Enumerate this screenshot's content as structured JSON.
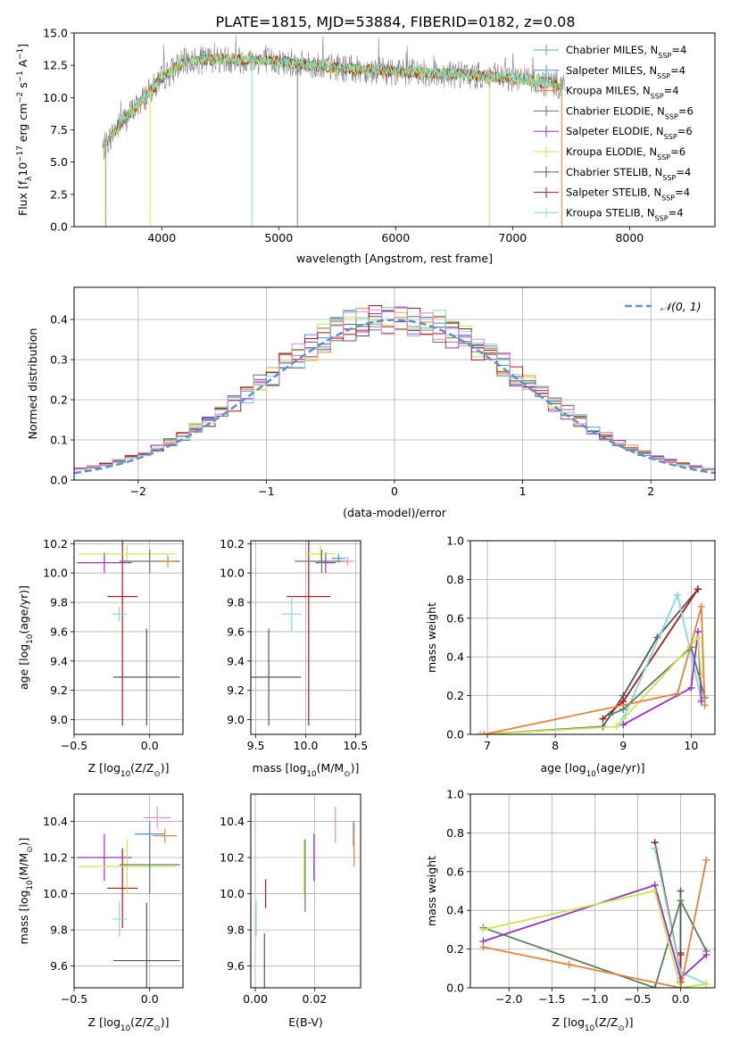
{
  "title": "PLATE=1815, MJD=53884, FIBERID=0182, z=0.08",
  "colors": {
    "chabrier_miles": "#5f9ea0",
    "salpeter_miles": "#4a90d9",
    "kroupa_miles": "#e8823a",
    "chabrier_elodie": "#5b7f5b",
    "salpeter_elodie": "#9b30c8",
    "kroupa_elodie": "#c8e84a",
    "chabrier_stelib": "#555555",
    "salpeter_stelib": "#b01818",
    "kroupa_stelib": "#7fdcdc",
    "normal_curve": "#5b8fd6",
    "grid": "#b0b0b0",
    "pink": "#e88ac8"
  },
  "chart_data": [
    {
      "type": "line",
      "name": "spectrum",
      "xlabel": "wavelength [Angstrom, rest frame]",
      "ylabel": "Flux [f",
      "ylabel_sub": "λ",
      "ylabel_rest": "10",
      "ylabel_exp": "−17",
      "ylabel_units": " erg cm",
      "ylabel_units_exp": "−2",
      "ylabel_s": " s",
      "ylabel_s_exp": "−1",
      "ylabel_a": " A",
      "ylabel_a_exp": "−1",
      "ylabel_close": "]",
      "xlim": [
        3250,
        8730
      ],
      "ylim": [
        0,
        15
      ],
      "xticks": [
        4000,
        5000,
        6000,
        7000,
        8000
      ],
      "yticks": [
        0.0,
        2.5,
        5.0,
        7.5,
        10.0,
        12.5,
        15.0
      ],
      "continuum": {
        "x": [
          3500,
          3600,
          3800,
          4000,
          4200,
          4500,
          5000,
          5500,
          6000,
          6500,
          7000,
          7400
        ],
        "y": [
          6.0,
          7.5,
          9.5,
          11.5,
          12.8,
          13.0,
          12.8,
          12.3,
          12.0,
          11.8,
          11.5,
          11.0
        ]
      },
      "legend": [
        {
          "name": "Chabrier MILES, N",
          "sub": "SSP",
          "rest": "=4",
          "key": "chabrier_miles"
        },
        {
          "name": "Salpeter MILES, N",
          "sub": "SSP",
          "rest": "=4",
          "key": "salpeter_miles"
        },
        {
          "name": "Kroupa MILES, N",
          "sub": "SSP",
          "rest": "=4",
          "key": "kroupa_miles"
        },
        {
          "name": "Chabrier ELODIE, N",
          "sub": "SSP",
          "rest": "=6",
          "key": "chabrier_elodie"
        },
        {
          "name": "Salpeter ELODIE, N",
          "sub": "SSP",
          "rest": "=6",
          "key": "salpeter_elodie"
        },
        {
          "name": "Kroupa ELODIE, N",
          "sub": "SSP",
          "rest": "=6",
          "key": "kroupa_elodie"
        },
        {
          "name": "Chabrier STELIB, N",
          "sub": "SSP",
          "rest": "=4",
          "key": "chabrier_stelib"
        },
        {
          "name": "Salpeter STELIB, N",
          "sub": "SSP",
          "rest": "=4",
          "key": "salpeter_stelib"
        },
        {
          "name": "Kroupa STELIB, N",
          "sub": "SSP",
          "rest": "=4",
          "key": "kroupa_stelib"
        }
      ],
      "legend_placement": "right"
    },
    {
      "type": "bar",
      "name": "residual-histogram",
      "xlabel": "(data-model)/error",
      "ylabel": "Normed distribution",
      "xlim": [
        -2.5,
        2.5
      ],
      "ylim": [
        0,
        0.48
      ],
      "xticks": [
        -2,
        -1,
        0,
        1,
        2
      ],
      "yticks": [
        0.0,
        0.1,
        0.2,
        0.3,
        0.4
      ],
      "grid": true,
      "legend_label": "𝒩(0, 1)",
      "legend_placement": "top-right",
      "bin_width": 0.1,
      "bin_start": -2.5
    },
    {
      "type": "scatter",
      "name": "age-vs-metallicity",
      "xlabel": "Z [log",
      "xlabel_sub": "10",
      "xlabel_rest": "(Z/Z",
      "xlabel_sub2": "⊙",
      "xlabel_close": ")]",
      "ylabel": "age  [log",
      "ylabel_sub": "10",
      "ylabel_rest": "(age/yr)]",
      "xlim": [
        -0.5,
        0.22
      ],
      "ylim": [
        8.9,
        10.22
      ],
      "xticks": [
        -0.5,
        0.0
      ],
      "yticks": [
        9.0,
        9.2,
        9.4,
        9.6,
        9.8,
        10.0,
        10.2
      ],
      "grid": true,
      "points": [
        {
          "x": -0.02,
          "y": 9.29,
          "xerr": 0.22,
          "yerr": 0.33,
          "key": "chabrier_stelib"
        },
        {
          "x": -0.18,
          "y": 9.84,
          "xerr": 0.1,
          "yerr": 0.88,
          "key": "salpeter_stelib"
        },
        {
          "x": -0.2,
          "y": 9.72,
          "xerr": 0.05,
          "yerr": 0.05,
          "key": "kroupa_stelib"
        },
        {
          "x": -0.3,
          "y": 10.07,
          "xerr": 0.18,
          "yerr": 0.07,
          "key": "salpeter_elodie"
        },
        {
          "x": -0.15,
          "y": 10.13,
          "xerr": 0.32,
          "yerr": 0.06,
          "key": "kroupa_elodie"
        },
        {
          "x": 0.0,
          "y": 10.08,
          "xerr": 0.2,
          "yerr": 0.08,
          "key": "chabrier_elodie"
        },
        {
          "x": 0.12,
          "y": 10.08,
          "xerr": 0.05,
          "yerr": 0.04,
          "key": "kroupa_miles"
        }
      ]
    },
    {
      "type": "scatter",
      "name": "age-vs-mass",
      "xlabel": "mass [log",
      "xlabel_sub": "10",
      "xlabel_rest": "(M/M",
      "xlabel_sub2": "⊙",
      "xlabel_close": ")]",
      "xlim": [
        9.45,
        10.55
      ],
      "ylim": [
        8.9,
        10.22
      ],
      "xticks": [
        9.5,
        10.0,
        10.5
      ],
      "yticks": [
        9.0,
        9.2,
        9.4,
        9.6,
        9.8,
        10.0,
        10.2
      ],
      "grid": true,
      "points": [
        {
          "x": 9.63,
          "y": 9.29,
          "xerr": 0.32,
          "yerr": 0.33,
          "key": "chabrier_stelib"
        },
        {
          "x": 10.03,
          "y": 9.84,
          "xerr": 0.22,
          "yerr": 0.88,
          "key": "salpeter_stelib"
        },
        {
          "x": 9.86,
          "y": 9.72,
          "xerr": 0.1,
          "yerr": 0.12,
          "key": "kroupa_stelib"
        },
        {
          "x": 10.2,
          "y": 10.07,
          "xerr": 0.1,
          "yerr": 0.07,
          "key": "salpeter_elodie"
        },
        {
          "x": 10.15,
          "y": 10.13,
          "xerr": 0.15,
          "yerr": 0.06,
          "key": "kroupa_elodie"
        },
        {
          "x": 10.16,
          "y": 10.08,
          "xerr": 0.27,
          "yerr": 0.08,
          "key": "chabrier_elodie"
        },
        {
          "x": 10.42,
          "y": 10.08,
          "xerr": 0.06,
          "yerr": 0.03,
          "key": "pink"
        },
        {
          "x": 10.33,
          "y": 10.1,
          "xerr": 0.07,
          "yerr": 0.03,
          "key": "salpeter_miles"
        }
      ]
    },
    {
      "type": "line",
      "name": "mass-weight-vs-age",
      "xlabel": "age  [log",
      "xlabel_sub": "10",
      "xlabel_rest": "(age/yr)]",
      "ylabel": "mass weight",
      "xlim": [
        6.75,
        10.35
      ],
      "ylim": [
        0,
        1.0
      ],
      "xticks": [
        7,
        8,
        9,
        10
      ],
      "yticks": [
        0.0,
        0.2,
        0.4,
        0.6,
        0.8,
        1.0
      ],
      "grid": true,
      "series": [
        {
          "key": "chabrier_stelib",
          "x": [
            6.9,
            8.7,
            9.0,
            9.5,
            10.1
          ],
          "y": [
            0.0,
            0.04,
            0.2,
            0.5,
            0.75
          ]
        },
        {
          "key": "salpeter_stelib",
          "x": [
            8.7,
            9.0,
            10.1
          ],
          "y": [
            0.08,
            0.17,
            0.75
          ]
        },
        {
          "key": "kroupa_stelib",
          "x": [
            9.0,
            9.8,
            10.15
          ],
          "y": [
            0.08,
            0.72,
            0.18
          ]
        },
        {
          "key": "chabrier_elodie",
          "x": [
            8.8,
            9.0,
            10.0,
            10.2
          ],
          "y": [
            0.1,
            0.13,
            0.45,
            0.19
          ]
        },
        {
          "key": "salpeter_elodie",
          "x": [
            9.0,
            10.0,
            10.1,
            10.15
          ],
          "y": [
            0.05,
            0.24,
            0.53,
            0.17
          ]
        },
        {
          "key": "kroupa_elodie",
          "x": [
            6.9,
            8.9,
            10.1,
            10.15
          ],
          "y": [
            0.0,
            0.04,
            0.5,
            0.3
          ]
        },
        {
          "key": "kroupa_miles",
          "x": [
            6.95,
            9.8,
            10.15,
            10.2
          ],
          "y": [
            0.0,
            0.21,
            0.66,
            0.15
          ]
        }
      ]
    },
    {
      "type": "scatter",
      "name": "mass-vs-metallicity",
      "xlabel": "Z [log",
      "xlabel_sub": "10",
      "xlabel_rest": "(Z/Z",
      "xlabel_sub2": "⊙",
      "xlabel_close": ")]",
      "ylabel": "mass [log",
      "ylabel_sub": "10",
      "ylabel_rest": "(M/M",
      "ylabel_sub2": "⊙",
      "ylabel_close": ")]",
      "xlim": [
        -0.5,
        0.22
      ],
      "ylim": [
        9.48,
        10.55
      ],
      "xticks": [
        -0.5,
        0.0
      ],
      "yticks": [
        9.6,
        9.8,
        10.0,
        10.2,
        10.4
      ],
      "grid": true,
      "points": [
        {
          "x": -0.02,
          "y": 9.63,
          "xerr": 0.22,
          "yerr": 0.32,
          "key": "chabrier_stelib"
        },
        {
          "x": -0.18,
          "y": 10.03,
          "xerr": 0.1,
          "yerr": 0.22,
          "key": "salpeter_stelib"
        },
        {
          "x": -0.2,
          "y": 9.86,
          "xerr": 0.05,
          "yerr": 0.1,
          "key": "kroupa_stelib"
        },
        {
          "x": -0.3,
          "y": 10.2,
          "xerr": 0.18,
          "yerr": 0.13,
          "key": "salpeter_elodie"
        },
        {
          "x": -0.15,
          "y": 10.15,
          "xerr": 0.32,
          "yerr": 0.15,
          "key": "kroupa_elodie"
        },
        {
          "x": 0.0,
          "y": 10.16,
          "xerr": 0.2,
          "yerr": 0.16,
          "key": "chabrier_elodie"
        },
        {
          "x": 0.05,
          "y": 10.42,
          "xerr": 0.09,
          "yerr": 0.06,
          "key": "pink"
        },
        {
          "x": 0.0,
          "y": 10.33,
          "xerr": 0.1,
          "yerr": 0.07,
          "key": "salpeter_miles"
        },
        {
          "x": 0.1,
          "y": 10.32,
          "xerr": 0.08,
          "yerr": 0.04,
          "key": "kroupa_miles"
        }
      ]
    },
    {
      "type": "scatter",
      "name": "mass-vs-ebv",
      "xlabel": "E(B-V)",
      "xlim": [
        -0.0015,
        0.0355
      ],
      "ylim": [
        9.48,
        10.55
      ],
      "xticks": [
        0.0,
        0.02
      ],
      "yticks": [
        9.6,
        9.8,
        10.0,
        10.2,
        10.4
      ],
      "grid": true,
      "points": [
        {
          "x": 0.0003,
          "y": 9.86,
          "yerr": 0.1,
          "key": "kroupa_stelib"
        },
        {
          "x": 0.0031,
          "y": 9.63,
          "yerr": 0.15,
          "key": "chabrier_stelib"
        },
        {
          "x": 0.0035,
          "y": 10.0,
          "yerr": 0.08,
          "key": "salpeter_stelib"
        },
        {
          "x": 0.0165,
          "y": 10.15,
          "yerr": 0.15,
          "key": "kroupa_elodie"
        },
        {
          "x": 0.0168,
          "y": 10.1,
          "yerr": 0.2,
          "key": "chabrier_elodie"
        },
        {
          "x": 0.0198,
          "y": 10.2,
          "yerr": 0.13,
          "key": "salpeter_elodie"
        },
        {
          "x": 0.027,
          "y": 10.38,
          "yerr": 0.1,
          "key": "pink"
        },
        {
          "x": 0.0331,
          "y": 10.33,
          "yerr": 0.07,
          "key": "salpeter_miles"
        },
        {
          "x": 0.0333,
          "y": 10.27,
          "yerr": 0.12,
          "key": "kroupa_miles"
        }
      ]
    },
    {
      "type": "line",
      "name": "mass-weight-vs-metallicity",
      "xlabel": "Z [log",
      "xlabel_sub": "10",
      "xlabel_rest": "(Z/Z",
      "xlabel_sub2": "⊙",
      "xlabel_close": ")]",
      "ylabel": "mass weight",
      "xlim": [
        -2.45,
        0.4
      ],
      "ylim": [
        0,
        1.0
      ],
      "xticks": [
        -2.0,
        -1.5,
        -1.0,
        -0.5,
        0.0
      ],
      "yticks": [
        0.0,
        0.2,
        0.4,
        0.6,
        0.8,
        1.0
      ],
      "grid": true,
      "series": [
        {
          "key": "chabrier_stelib",
          "x": [
            0.0,
            0.0,
            0.0,
            0.0
          ],
          "y": [
            0.5,
            0.18,
            0.03,
            0.03
          ]
        },
        {
          "key": "salpeter_stelib",
          "x": [
            -0.3,
            0.0,
            0.0
          ],
          "y": [
            0.75,
            0.08,
            0.17
          ]
        },
        {
          "key": "kroupa_stelib",
          "x": [
            -0.3,
            0.0,
            0.3
          ],
          "y": [
            0.72,
            0.08,
            0.02
          ]
        },
        {
          "key": "chabrier_elodie",
          "x": [
            -2.3,
            -0.3,
            0.0,
            0.3
          ],
          "y": [
            0.31,
            0.0,
            0.45,
            0.19
          ]
        },
        {
          "key": "salpeter_elodie",
          "x": [
            -2.3,
            -0.3,
            0.0,
            0.3
          ],
          "y": [
            0.24,
            0.53,
            0.05,
            0.17
          ]
        },
        {
          "key": "kroupa_elodie",
          "x": [
            -2.3,
            -0.3,
            0.0,
            0.3
          ],
          "y": [
            0.3,
            0.5,
            0.0,
            0.02
          ]
        },
        {
          "key": "kroupa_miles",
          "x": [
            -2.3,
            -1.3,
            0.0,
            0.3
          ],
          "y": [
            0.21,
            0.12,
            0.0,
            0.66
          ]
        }
      ]
    }
  ]
}
